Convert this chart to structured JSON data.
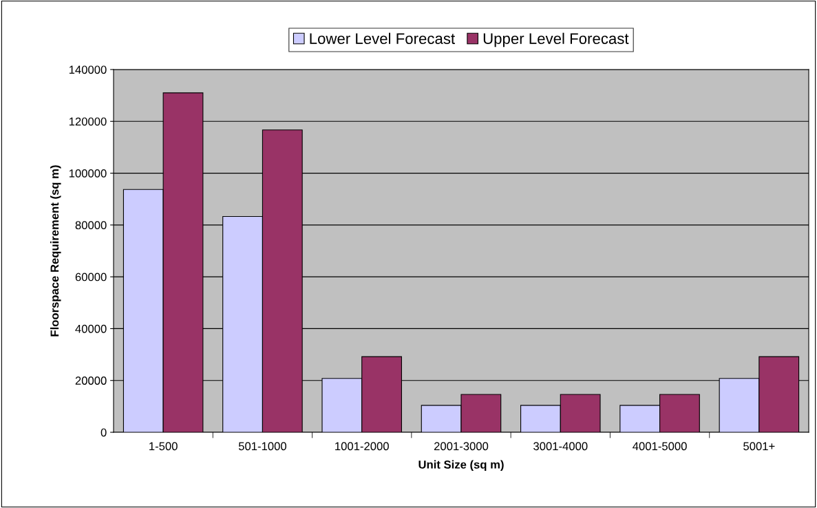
{
  "chart_data": {
    "type": "bar",
    "xlabel": "Unit Size (sq m)",
    "ylabel": "Floorspace Requirement (sq m)",
    "categories": [
      "1-500",
      "501-1000",
      "1001-2000",
      "2001-3000",
      "3001-4000",
      "4001-5000",
      "5001+"
    ],
    "series": [
      {
        "name": "Lower Level Forecast",
        "color": "#ccccff",
        "values": [
          93700,
          83300,
          20800,
          10400,
          10400,
          10400,
          20800
        ]
      },
      {
        "name": "Upper Level Forecast",
        "color": "#993366",
        "values": [
          131000,
          116700,
          29200,
          14600,
          14600,
          14600,
          29200
        ]
      }
    ],
    "ylim": [
      0,
      140000
    ],
    "yticks": [
      0,
      20000,
      40000,
      60000,
      80000,
      100000,
      120000,
      140000
    ],
    "grid": "y",
    "legend": "top"
  }
}
